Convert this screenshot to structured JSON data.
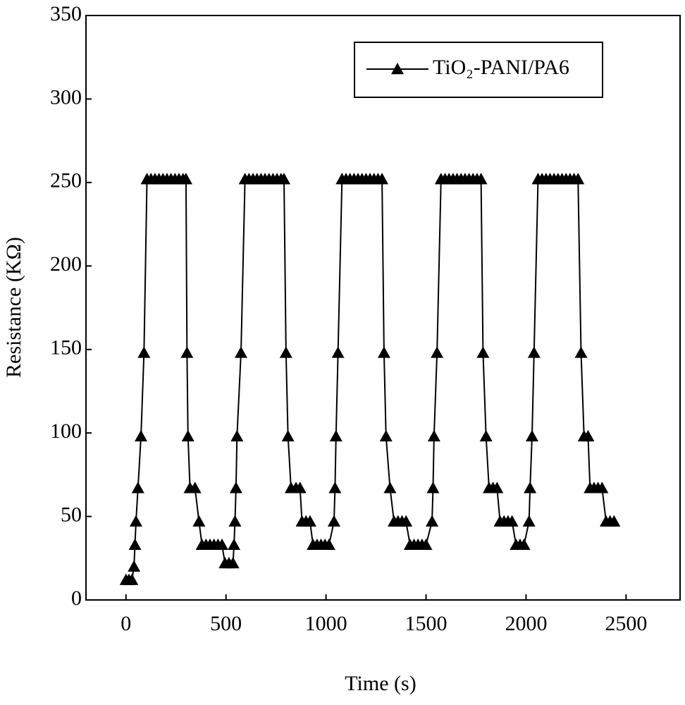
{
  "chart_data": {
    "type": "line",
    "x_label": "Time (s)",
    "y_label": "Resistance (KΩ)",
    "xlim": [
      -200,
      2770
    ],
    "ylim": [
      0,
      350
    ],
    "xticks": [
      0,
      500,
      1000,
      1500,
      2000,
      2500
    ],
    "yticks": [
      0,
      50,
      100,
      150,
      200,
      250,
      300,
      350
    ],
    "legend": "top-right",
    "series": [
      {
        "name": "TiO₂-PANI/PA6",
        "color": "#000000",
        "x": [
          0,
          15,
          30,
          40,
          45,
          50,
          60,
          75,
          90,
          105,
          125,
          145,
          165,
          185,
          205,
          225,
          245,
          265,
          285,
          300,
          305,
          310,
          320,
          345,
          365,
          380,
          400,
          420,
          440,
          460,
          480,
          495,
          515,
          535,
          540,
          545,
          550,
          555,
          575,
          595,
          615,
          635,
          655,
          675,
          695,
          715,
          735,
          755,
          775,
          790,
          800,
          810,
          825,
          850,
          870,
          880,
          900,
          920,
          935,
          955,
          975,
          995,
          1015,
          1040,
          1045,
          1050,
          1060,
          1080,
          1100,
          1120,
          1140,
          1160,
          1180,
          1200,
          1220,
          1240,
          1260,
          1280,
          1290,
          1300,
          1320,
          1340,
          1360,
          1380,
          1400,
          1420,
          1440,
          1460,
          1480,
          1500,
          1530,
          1535,
          1540,
          1555,
          1575,
          1595,
          1615,
          1635,
          1655,
          1675,
          1695,
          1715,
          1735,
          1755,
          1775,
          1785,
          1800,
          1815,
          1835,
          1855,
          1870,
          1890,
          1910,
          1930,
          1950,
          1970,
          1990,
          2015,
          2020,
          2030,
          2040,
          2060,
          2080,
          2100,
          2120,
          2140,
          2160,
          2180,
          2200,
          2220,
          2240,
          2260,
          2275,
          2290,
          2310,
          2320,
          2340,
          2360,
          2380,
          2400,
          2420,
          2440
        ],
        "values": [
          12,
          12,
          12,
          20,
          33,
          47,
          67,
          98,
          148,
          252,
          252,
          252,
          252,
          252,
          252,
          252,
          252,
          252,
          252,
          252,
          148,
          98,
          67,
          67,
          47,
          33,
          33,
          33,
          33,
          33,
          33,
          22,
          22,
          22,
          33,
          47,
          67,
          98,
          148,
          252,
          252,
          252,
          252,
          252,
          252,
          252,
          252,
          252,
          252,
          252,
          148,
          98,
          67,
          67,
          67,
          47,
          47,
          47,
          33,
          33,
          33,
          33,
          33,
          47,
          67,
          98,
          148,
          252,
          252,
          252,
          252,
          252,
          252,
          252,
          252,
          252,
          252,
          252,
          148,
          98,
          67,
          47,
          47,
          47,
          47,
          33,
          33,
          33,
          33,
          33,
          47,
          67,
          98,
          148,
          252,
          252,
          252,
          252,
          252,
          252,
          252,
          252,
          252,
          252,
          252,
          148,
          98,
          67,
          67,
          67,
          47,
          47,
          47,
          47,
          33,
          33,
          33,
          47,
          67,
          98,
          148,
          252,
          252,
          252,
          252,
          252,
          252,
          252,
          252,
          252,
          252,
          252,
          148,
          98,
          98,
          67,
          67,
          67,
          67,
          47,
          47,
          47
        ]
      }
    ]
  }
}
